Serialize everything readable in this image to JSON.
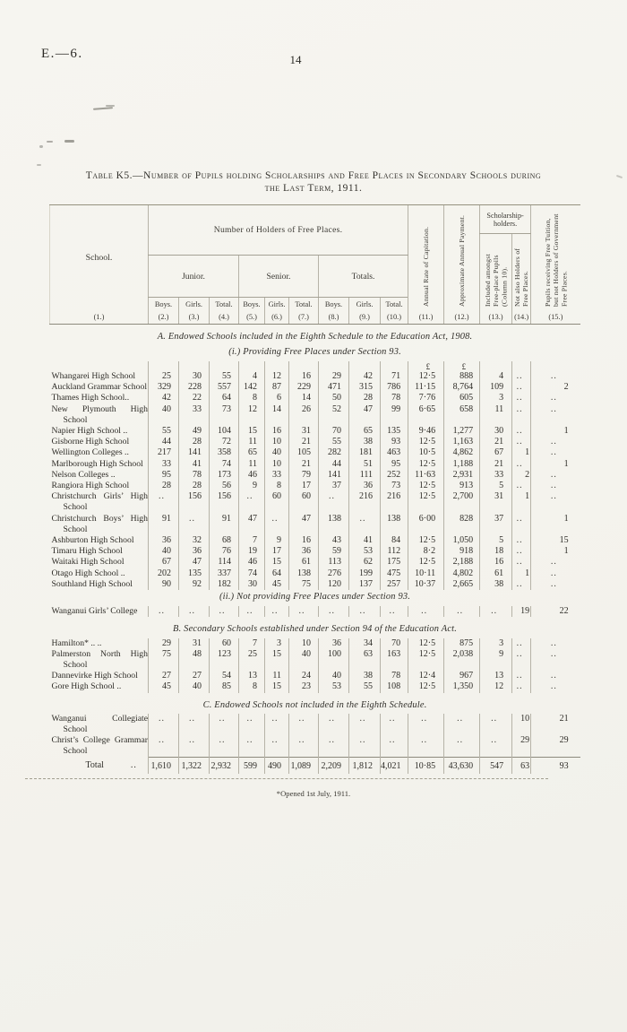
{
  "page": {
    "doc_code": "E.—6.",
    "page_number": "14",
    "title_line1": "Table K5.—Number of Pupils holding Scholarships and Free Places in Secondary Schools during",
    "title_line2": "the Last Term, 1911.",
    "footnote": "*Opened 1st July, 1911."
  },
  "table": {
    "school_header": "School.",
    "group_header": "Number of Holders of Free Places.",
    "subgroups": [
      "Junior.",
      "Senior.",
      "Totals."
    ],
    "leaf_headers": [
      "Boys.",
      "Girls.",
      "Total.",
      "Boys.",
      "Girls.",
      "Total.",
      "Boys.",
      "Girls.",
      "Total."
    ],
    "col_numbers": [
      "(1.)",
      "(2.)",
      "(3.)",
      "(4.)",
      "(5.)",
      "(6.)",
      "(7.)",
      "(8.)",
      "(9.)",
      "(10.)",
      "(11.)",
      "(12.)",
      "(13.)",
      "(14.)",
      "(15.)"
    ],
    "rotated": {
      "col11": "Annual Rate of Capitation.",
      "col12": "Approximate Annual Payment.",
      "scholarship_group": "Scholarship-holders.",
      "col13": "Included amongst Free-place Pupils (Column 10).",
      "col14": "Not also Holders of Free Places.",
      "col15": "Pupils receiving Free Tuition, but not Holders of Government Free Places."
    },
    "currency_symbol": "£"
  },
  "sections": [
    {
      "heading": "A. Endowed Schools included in the Eighth Schedule to the Education Act, 1908.",
      "subheading": "(i.) Providing Free Places under Section 93.",
      "currency_row": true,
      "rows": [
        {
          "school": "Whangarei High School",
          "values": [
            "25",
            "30",
            "55",
            "4",
            "12",
            "16",
            "29",
            "42",
            "71",
            "12·5",
            "888",
            "4",
            "..",
            ".."
          ]
        },
        {
          "school": "Auckland Grammar School",
          "values": [
            "329",
            "228",
            "557",
            "142",
            "87",
            "229",
            "471",
            "315",
            "786",
            "11·15",
            "8,764",
            "109",
            "..",
            "2"
          ]
        },
        {
          "school": "Thames High School..",
          "values": [
            "42",
            "22",
            "64",
            "8",
            "6",
            "14",
            "50",
            "28",
            "78",
            "7·76",
            "605",
            "3",
            "..",
            ".."
          ]
        },
        {
          "school": "New Plymouth High School",
          "values": [
            "40",
            "33",
            "73",
            "12",
            "14",
            "26",
            "52",
            "47",
            "99",
            "6·65",
            "658",
            "11",
            "..",
            ".."
          ]
        },
        {
          "school": "Napier High School ..",
          "values": [
            "55",
            "49",
            "104",
            "15",
            "16",
            "31",
            "70",
            "65",
            "135",
            "9·46",
            "1,277",
            "30",
            "..",
            "1"
          ]
        },
        {
          "school": "Gisborne High School",
          "values": [
            "44",
            "28",
            "72",
            "11",
            "10",
            "21",
            "55",
            "38",
            "93",
            "12·5",
            "1,163",
            "21",
            "..",
            ".."
          ]
        },
        {
          "school": "Wellington Colleges ..",
          "values": [
            "217",
            "141",
            "358",
            "65",
            "40",
            "105",
            "282",
            "181",
            "463",
            "10·5",
            "4,862",
            "67",
            "1",
            ".."
          ]
        },
        {
          "school": "Marlborough High School",
          "values": [
            "33",
            "41",
            "74",
            "11",
            "10",
            "21",
            "44",
            "51",
            "95",
            "12·5",
            "1,188",
            "21",
            "..",
            "1"
          ]
        },
        {
          "school": "Nelson Colleges ..",
          "values": [
            "95",
            "78",
            "173",
            "46",
            "33",
            "79",
            "141",
            "111",
            "252",
            "11·63",
            "2,931",
            "33",
            "2",
            ".."
          ]
        },
        {
          "school": "Rangiora High School",
          "values": [
            "28",
            "28",
            "56",
            "9",
            "8",
            "17",
            "37",
            "36",
            "73",
            "12·5",
            "913",
            "5",
            "..",
            ".."
          ]
        },
        {
          "school": "Christchurch Girls’ High School",
          "values": [
            "..",
            "156",
            "156",
            "..",
            "60",
            "60",
            "..",
            "216",
            "216",
            "12·5",
            "2,700",
            "31",
            "1",
            ".."
          ]
        },
        {
          "school": "Christchurch Boys’ High School",
          "values": [
            "91",
            "..",
            "91",
            "47",
            "..",
            "47",
            "138",
            "..",
            "138",
            "6·00",
            "828",
            "37",
            "..",
            "1"
          ]
        },
        {
          "school": "Ashburton High School",
          "values": [
            "36",
            "32",
            "68",
            "7",
            "9",
            "16",
            "43",
            "41",
            "84",
            "12·5",
            "1,050",
            "5",
            "..",
            "15"
          ]
        },
        {
          "school": "Timaru High School",
          "values": [
            "40",
            "36",
            "76",
            "19",
            "17",
            "36",
            "59",
            "53",
            "112",
            "8·2",
            "918",
            "18",
            "..",
            "1"
          ]
        },
        {
          "school": "Waitaki High School",
          "values": [
            "67",
            "47",
            "114",
            "46",
            "15",
            "61",
            "113",
            "62",
            "175",
            "12·5",
            "2,188",
            "16",
            "..",
            ".."
          ]
        },
        {
          "school": "Otago High School ..",
          "values": [
            "202",
            "135",
            "337",
            "74",
            "64",
            "138",
            "276",
            "199",
            "475",
            "10·11",
            "4,802",
            "61",
            "1",
            ".."
          ]
        },
        {
          "school": "Southland High School",
          "values": [
            "90",
            "92",
            "182",
            "30",
            "45",
            "75",
            "120",
            "137",
            "257",
            "10·37",
            "2,665",
            "38",
            "..",
            ".."
          ]
        }
      ]
    },
    {
      "subheading": "(ii.) Not providing Free Places under Section 93.",
      "rows": [
        {
          "school": "Wanganui Girls’ College",
          "values": [
            "..",
            "..",
            "..",
            "..",
            "..",
            "..",
            "..",
            "..",
            "..",
            "..",
            "..",
            "..",
            "19",
            "22"
          ]
        }
      ]
    },
    {
      "heading": "B. Secondary Schools established under Section 94 of the Education Act.",
      "rows": [
        {
          "school": "Hamilton* .. ..",
          "values": [
            "29",
            "31",
            "60",
            "7",
            "3",
            "10",
            "36",
            "34",
            "70",
            "12·5",
            "875",
            "3",
            "..",
            ".."
          ]
        },
        {
          "school": "Palmerston North High School",
          "values": [
            "75",
            "48",
            "123",
            "25",
            "15",
            "40",
            "100",
            "63",
            "163",
            "12·5",
            "2,038",
            "9",
            "..",
            ".."
          ]
        },
        {
          "school": "Dannevirke High School",
          "values": [
            "27",
            "27",
            "54",
            "13",
            "11",
            "24",
            "40",
            "38",
            "78",
            "12·4",
            "967",
            "13",
            "..",
            ".."
          ]
        },
        {
          "school": "Gore High School ..",
          "values": [
            "45",
            "40",
            "85",
            "8",
            "15",
            "23",
            "53",
            "55",
            "108",
            "12·5",
            "1,350",
            "12",
            "..",
            ".."
          ]
        }
      ]
    },
    {
      "heading": "C. Endowed Schools not included in the Eighth Schedule.",
      "rows": [
        {
          "school": "Wanganui Collegiate School",
          "values": [
            "..",
            "..",
            "..",
            "..",
            "..",
            "..",
            "..",
            "..",
            "..",
            "..",
            "..",
            "..",
            "10",
            "21"
          ]
        },
        {
          "school": "Christ’s College Grammar School",
          "values": [
            "..",
            "..",
            "..",
            "..",
            "..",
            "..",
            "..",
            "..",
            "..",
            "..",
            "..",
            "..",
            "29",
            "29"
          ]
        }
      ]
    }
  ],
  "total": {
    "label": "Total",
    "dots": "..",
    "values": [
      "1,610",
      "1,322",
      "2,932",
      "599",
      "490",
      "1,089",
      "2,209",
      "1,812",
      "4,021",
      "10·85",
      "43,630",
      "547",
      "63",
      "93"
    ]
  }
}
